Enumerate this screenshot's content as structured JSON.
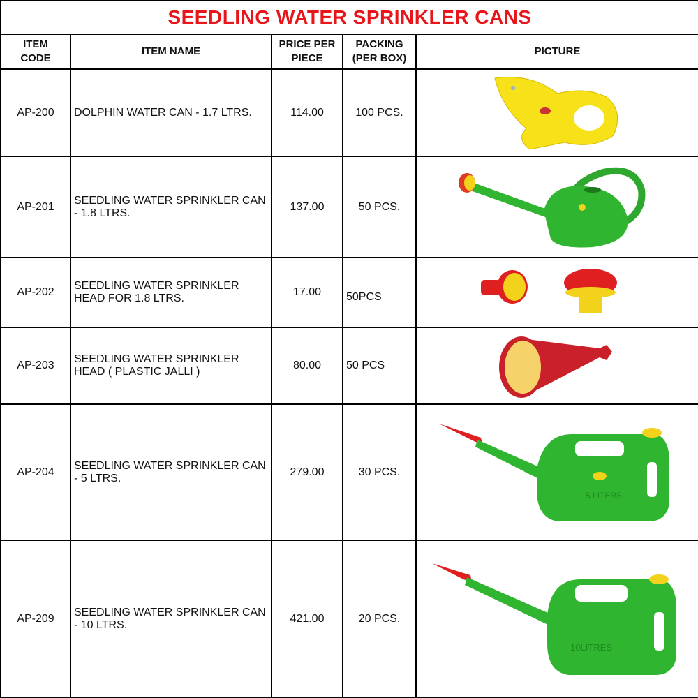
{
  "title": "SEEDLING WATER SPRINKLER CANS",
  "headers": {
    "code": [
      "ITEM",
      "CODE"
    ],
    "name": "ITEM NAME",
    "price": [
      "PRICE PER",
      "PIECE"
    ],
    "packing": [
      "PACKING",
      "(PER BOX)"
    ],
    "picture": "PICTURE"
  },
  "rows": [
    {
      "code": "AP-200",
      "name": "DOLPHIN WATER CAN - 1.7 LTRS.",
      "price": "114.00",
      "packing": "100 PCS.",
      "picture": "yellow-dolphin-can"
    },
    {
      "code": "AP-201",
      "name": "SEEDLING WATER SPRINKLER CAN - 1.8 LTRS.",
      "price": "137.00",
      "packing": "50 PCS.",
      "picture": "green-round-can"
    },
    {
      "code": "AP-202",
      "name": "SEEDLING WATER SPRINKLER HEAD FOR 1.8 LTRS.",
      "price": "17.00",
      "packing": "50PCS",
      "picture": "red-yellow-heads"
    },
    {
      "code": "AP-203",
      "name": "SEEDLING WATER SPRINKLER HEAD ( PLASTIC JALLI )",
      "price": "80.00",
      "packing": "50 PCS",
      "picture": "red-yellow-rose"
    },
    {
      "code": "AP-204",
      "name": "SEEDLING WATER SPRINKLER CAN - 5 LTRS.",
      "price": "279.00",
      "packing": "30 PCS.",
      "picture": "green-can-5l",
      "label": "5 LITERS"
    },
    {
      "code": "AP-209",
      "name": "SEEDLING WATER SPRINKLER CAN - 10 LTRS.",
      "price": "421.00",
      "packing": "20 PCS.",
      "picture": "green-can-10l",
      "label": "10LITRES"
    }
  ],
  "colors": {
    "title": "#e8161b",
    "green": "#2fb52f",
    "yellow": "#f7e21a",
    "red": "#e02020"
  }
}
